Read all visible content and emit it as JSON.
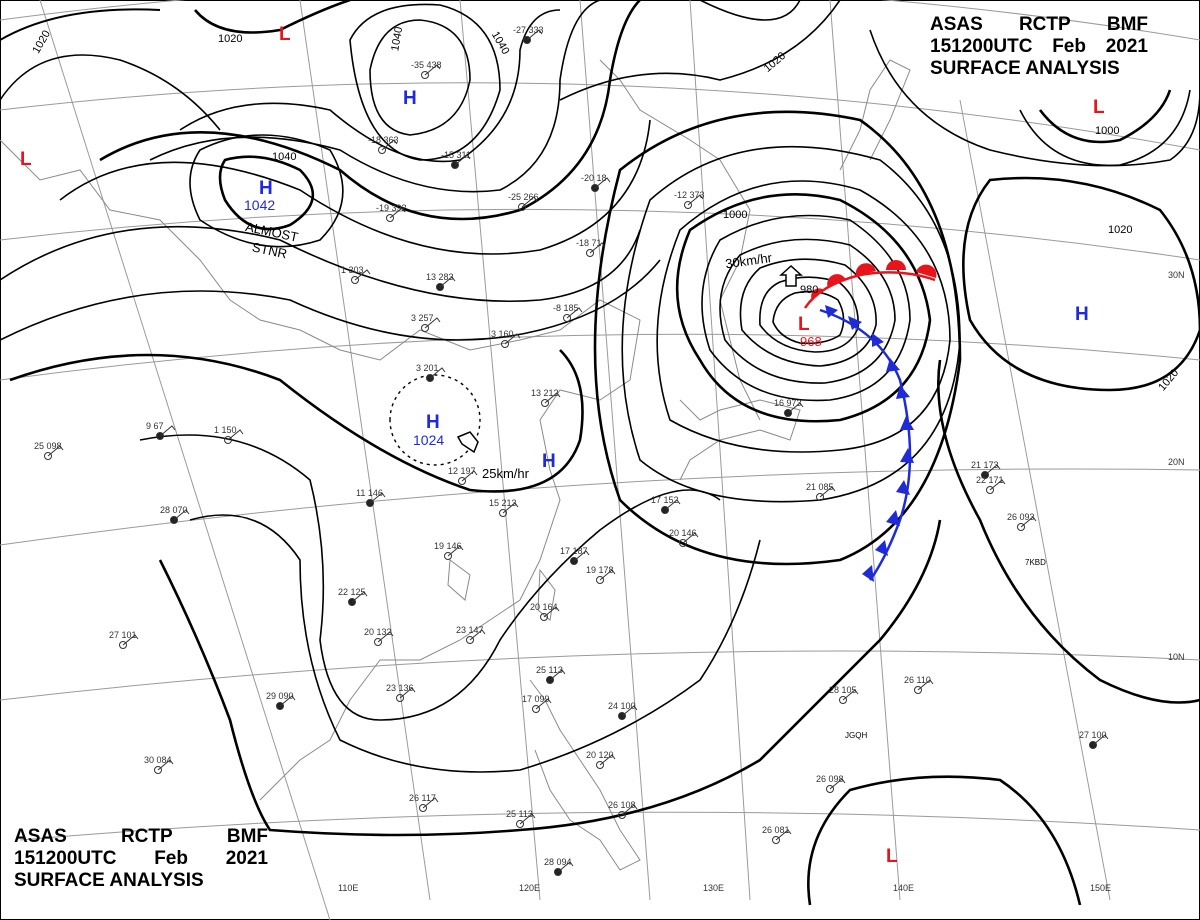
{
  "header": {
    "agency": [
      "ASAS",
      "RCTP",
      "BMF"
    ],
    "valid": [
      "151200UTC",
      "Feb",
      "2021"
    ],
    "product": "SURFACE ANALYSIS"
  },
  "colors": {
    "background": "#ffffff",
    "isobar": "#000000",
    "grid": "#9a9a9a",
    "coast": "#8a8a8a",
    "high_center": "#1f2bd6",
    "low_center": "#e8141b",
    "warm_front": "#e8141b",
    "cold_front": "#1f2bd6"
  },
  "longitude_labels": [
    "110E",
    "120E",
    "130E",
    "140E",
    "150E"
  ],
  "latitude_labels": [
    "30N",
    "20N",
    "10N"
  ],
  "isobar_labels": [
    "1020",
    "1020",
    "1040",
    "1040",
    "1020",
    "1040",
    "1000",
    "1020",
    "1000",
    "980",
    "1020"
  ],
  "pressure_centers": [
    {
      "type": "H",
      "value": ""
    },
    {
      "type": "H",
      "value": "1042"
    },
    {
      "type": "H",
      "value": "1024"
    },
    {
      "type": "H",
      "value": ""
    },
    {
      "type": "H",
      "value": ""
    },
    {
      "type": "L",
      "value": ""
    },
    {
      "type": "L",
      "value": ""
    },
    {
      "type": "L",
      "value": ""
    },
    {
      "type": "L",
      "value": "968"
    },
    {
      "type": "L",
      "value": ""
    }
  ],
  "annotations": [
    "ALMOST",
    "STNR",
    "25km/hr",
    "30km/hr"
  ],
  "station_ids": [
    "7KBD",
    "JGQH"
  ],
  "station_plots": [
    "-27 333",
    "-35 438",
    "-18 363",
    "-15 311",
    "-19 392",
    "-25 266",
    "-20 18",
    "-12 373",
    "-18 71",
    "13 283",
    "1 303",
    "3 257",
    "3 201",
    "3 160",
    "-8 185",
    "9 67",
    "1 150",
    "12 197",
    "11 146",
    "15 213",
    "13 212",
    "17 152",
    "20 146",
    "19 146",
    "17 187",
    "19 178",
    "20 164",
    "22 125",
    "20 132",
    "23 147",
    "25 113",
    "17 099",
    "23 136",
    "29 090",
    "26 117",
    "25 113",
    "28 094",
    "28 105",
    "26 110",
    "27 100",
    "26 098",
    "26 081",
    "21 173",
    "22 171",
    "26 093",
    "16 973",
    "21 085",
    "25 098",
    "28 070",
    "27 101",
    "30 084",
    "24 100",
    "20 120",
    "26 108"
  ]
}
